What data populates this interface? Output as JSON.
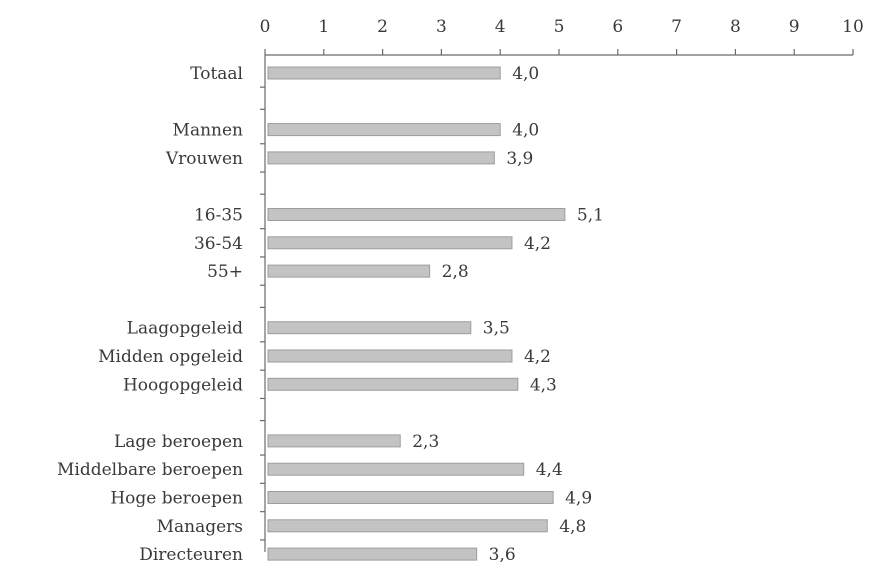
{
  "chart_data": {
    "type": "bar",
    "orientation": "horizontal",
    "title": "",
    "xlabel": "",
    "ylabel": "",
    "xlim": [
      0,
      10
    ],
    "x_ticks": [
      0,
      1,
      2,
      3,
      4,
      5,
      6,
      7,
      8,
      9,
      10
    ],
    "x_tick_labels": [
      "0",
      "1",
      "2",
      "3",
      "4",
      "5",
      "6",
      "7",
      "8",
      "9",
      "10"
    ],
    "x_axis_position": "top",
    "grid": false,
    "categories": [
      "Totaal",
      "Mannen",
      "Vrouwen",
      "16-35",
      "36-54",
      "55+",
      "Laagopgeleid",
      "Midden opgeleid",
      "Hoogopgeleid",
      "Lage beroepen",
      "Middelbare beroepen",
      "Hoge beroepen",
      "Managers",
      "Directeuren"
    ],
    "groups": [
      [
        0
      ],
      [
        1,
        2
      ],
      [
        3,
        4,
        5
      ],
      [
        6,
        7,
        8
      ],
      [
        9,
        10,
        11,
        12,
        13
      ]
    ],
    "values": [
      4.0,
      4.0,
      3.9,
      5.1,
      4.2,
      2.8,
      3.5,
      4.2,
      4.3,
      2.3,
      4.4,
      4.9,
      4.8,
      3.6
    ],
    "value_labels": [
      "4,0",
      "4,0",
      "3,9",
      "5,1",
      "4,2",
      "2,8",
      "3,5",
      "4,2",
      "4,3",
      "2,3",
      "4,4",
      "4,9",
      "4,8",
      "3,6"
    ],
    "colors": {
      "bar": "#c3c3c3",
      "bar_edge": "#9d9d9d",
      "axis": "#6a6a6a",
      "text": "#3a3a3a"
    }
  }
}
